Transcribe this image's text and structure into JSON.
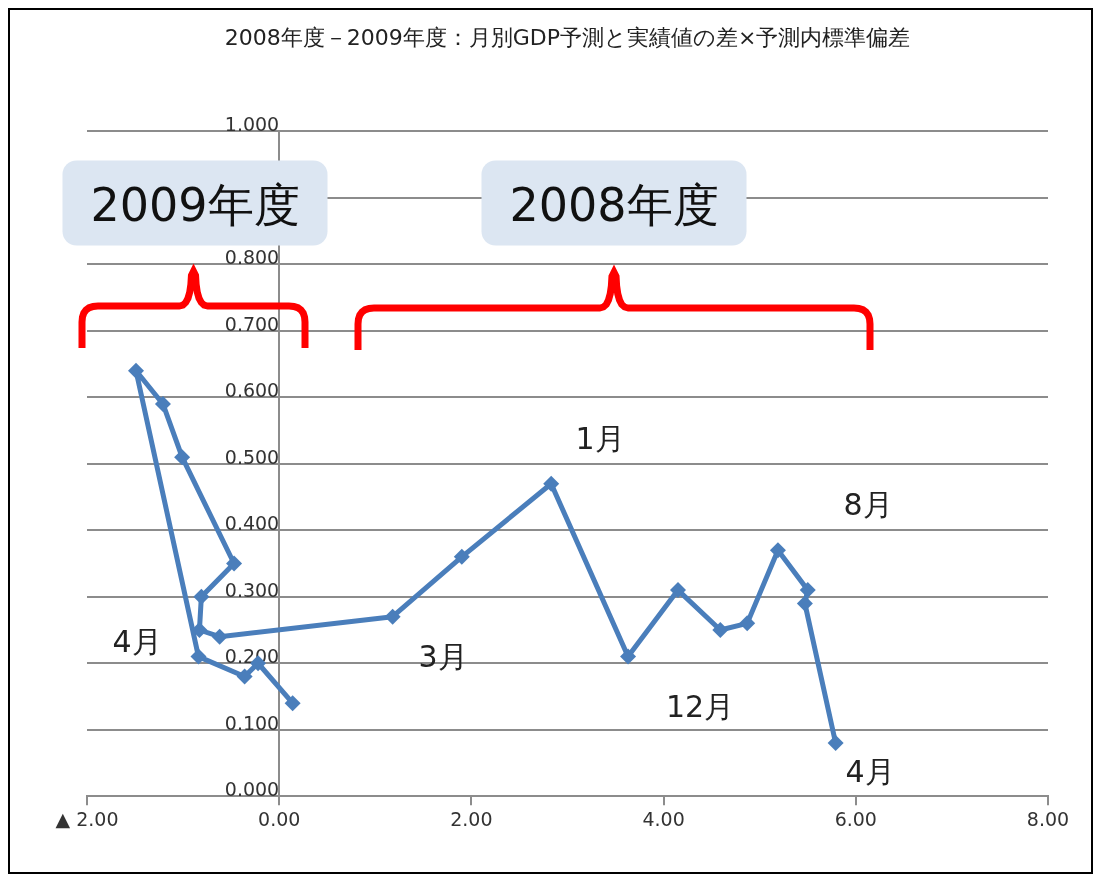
{
  "chart_data": {
    "type": "line",
    "title": "2008年度－2009年度：月別GDP予測と実績値の差×予測内標準偏差",
    "x": [
      5.79,
      5.47,
      5.5,
      5.19,
      4.87,
      4.59,
      4.15,
      3.63,
      2.83,
      1.9,
      1.18,
      -0.62,
      -0.83,
      -0.81,
      -0.47,
      -1.01,
      -1.21,
      -1.49,
      -0.84,
      -0.36,
      -0.22,
      0.14
    ],
    "values": [
      0.08,
      0.29,
      0.31,
      0.37,
      0.26,
      0.25,
      0.31,
      0.21,
      0.47,
      0.36,
      0.27,
      0.24,
      0.25,
      0.3,
      0.35,
      0.51,
      0.59,
      0.64,
      0.21,
      0.18,
      0.2,
      0.14
    ],
    "color": "#4a7ebb",
    "marker": "diamond",
    "line_style": "solid",
    "grid": "y",
    "xlim": [
      -2,
      8
    ],
    "xticks": [
      {
        "value": -2,
        "label": "▲ 2.00"
      },
      {
        "value": 0,
        "label": "0.00"
      },
      {
        "value": 2,
        "label": "2.00"
      },
      {
        "value": 4,
        "label": "4.00"
      },
      {
        "value": 6,
        "label": "6.00"
      },
      {
        "value": 8,
        "label": "8.00"
      }
    ],
    "ylim": [
      0,
      1
    ],
    "yticks": [
      {
        "value": 0,
        "label": "0.000"
      },
      {
        "value": 0.1,
        "label": "0.100"
      },
      {
        "value": 0.2,
        "label": "0.200"
      },
      {
        "value": 0.3,
        "label": "0.300"
      },
      {
        "value": 0.4,
        "label": "0.400"
      },
      {
        "value": 0.5,
        "label": "0.500"
      },
      {
        "value": 0.6,
        "label": "0.600"
      },
      {
        "value": 0.7,
        "label": "0.700"
      },
      {
        "value": 0.8,
        "label": "0.800"
      },
      {
        "value": 0.9,
        "label": null
      },
      {
        "value": 1,
        "label": "1.000"
      }
    ],
    "annotations": [
      "2009年度",
      "2008年度",
      "1月",
      "8月",
      "4月",
      "3月",
      "12月",
      "4月"
    ]
  }
}
